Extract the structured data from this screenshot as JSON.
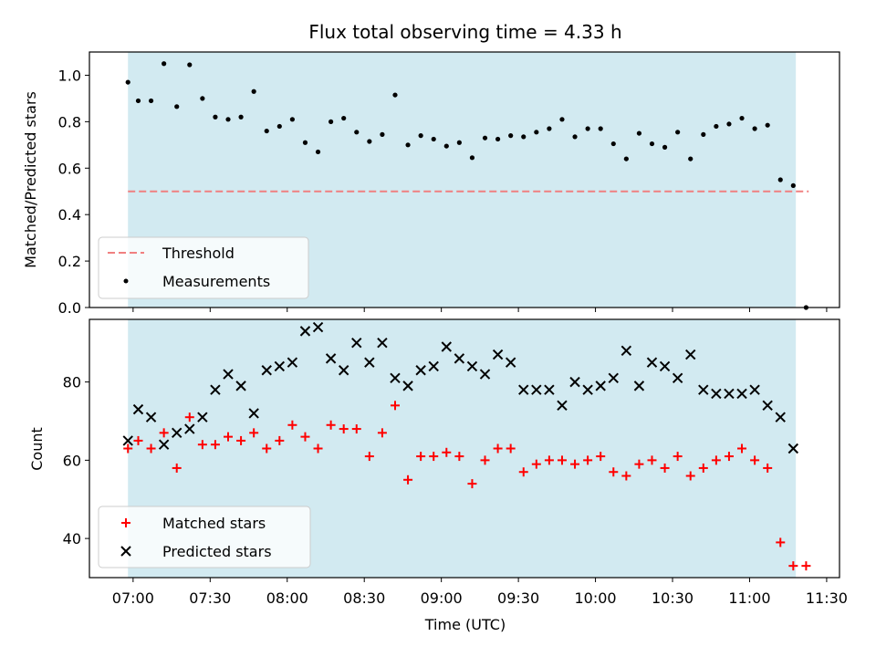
{
  "chart_data": [
    {
      "type": "scatter",
      "title": "Flux total observing time = 4.33 h",
      "ylabel": "Matched/Predicted stars",
      "ylim": [
        0,
        1.1
      ],
      "yticks": [
        "0.0",
        "0.2",
        "0.4",
        "0.6",
        "0.8",
        "1.0"
      ],
      "ytick_values": [
        0,
        0.2,
        0.4,
        0.6,
        0.8,
        1.0
      ],
      "threshold": {
        "name": "Threshold",
        "value": 0.5,
        "color": "#f08080",
        "x_start": "06:58",
        "x_end": "11:23"
      },
      "series": [
        {
          "name": "Measurements",
          "color": "#000000",
          "marker": "dot",
          "x": [
            "06:58",
            "07:02",
            "07:07",
            "07:12",
            "07:17",
            "07:22",
            "07:27",
            "07:32",
            "07:37",
            "07:42",
            "07:47",
            "07:52",
            "07:57",
            "08:02",
            "08:07",
            "08:12",
            "08:17",
            "08:22",
            "08:27",
            "08:32",
            "08:37",
            "08:42",
            "08:47",
            "08:52",
            "08:57",
            "09:02",
            "09:07",
            "09:12",
            "09:17",
            "09:22",
            "09:27",
            "09:32",
            "09:37",
            "09:42",
            "09:47",
            "09:52",
            "09:57",
            "10:02",
            "10:07",
            "10:12",
            "10:17",
            "10:22",
            "10:27",
            "10:32",
            "10:37",
            "10:42",
            "10:47",
            "10:52",
            "10:57",
            "11:02",
            "11:07",
            "11:12",
            "11:17",
            "11:22"
          ],
          "values": [
            0.97,
            0.89,
            0.89,
            1.05,
            0.865,
            1.045,
            0.9,
            0.82,
            0.81,
            0.82,
            0.93,
            0.76,
            0.78,
            0.81,
            0.71,
            0.67,
            0.8,
            0.815,
            0.755,
            0.715,
            0.745,
            0.915,
            0.7,
            0.74,
            0.725,
            0.695,
            0.71,
            0.645,
            0.73,
            0.725,
            0.74,
            0.735,
            0.755,
            0.77,
            0.81,
            0.735,
            0.77,
            0.77,
            0.705,
            0.64,
            0.75,
            0.705,
            0.69,
            0.755,
            0.64,
            0.745,
            0.78,
            0.79,
            0.815,
            0.77,
            0.785,
            0.55,
            0.525,
            0.0
          ]
        }
      ],
      "legend": "lower-left"
    },
    {
      "type": "scatter",
      "xlabel": "Time (UTC)",
      "ylabel": "Count",
      "ylim": [
        30,
        96
      ],
      "yticks": [
        "40",
        "60",
        "80"
      ],
      "ytick_values": [
        40,
        60,
        80
      ],
      "xlim": [
        "06:43",
        "11:35"
      ],
      "xticks": [
        "07:00",
        "07:30",
        "08:00",
        "08:30",
        "09:00",
        "09:30",
        "10:00",
        "10:30",
        "11:00",
        "11:30"
      ],
      "span": {
        "x_start": "06:58",
        "x_end": "11:18",
        "color": "#add8e6"
      },
      "series": [
        {
          "name": "Matched stars",
          "color": "#ff0000",
          "marker": "plus",
          "x": [
            "06:58",
            "07:02",
            "07:07",
            "07:12",
            "07:17",
            "07:22",
            "07:27",
            "07:32",
            "07:37",
            "07:42",
            "07:47",
            "07:52",
            "07:57",
            "08:02",
            "08:07",
            "08:12",
            "08:17",
            "08:22",
            "08:27",
            "08:32",
            "08:37",
            "08:42",
            "08:47",
            "08:52",
            "08:57",
            "09:02",
            "09:07",
            "09:12",
            "09:17",
            "09:22",
            "09:27",
            "09:32",
            "09:37",
            "09:42",
            "09:47",
            "09:52",
            "09:57",
            "10:02",
            "10:07",
            "10:12",
            "10:17",
            "10:22",
            "10:27",
            "10:32",
            "10:37",
            "10:42",
            "10:47",
            "10:52",
            "10:57",
            "11:02",
            "11:07",
            "11:12",
            "11:17",
            "11:22"
          ],
          "values": [
            63,
            65,
            63,
            67,
            58,
            71,
            64,
            64,
            66,
            65,
            67,
            63,
            65,
            69,
            66,
            63,
            69,
            68,
            68,
            61,
            67,
            74,
            55,
            61,
            61,
            62,
            61,
            54,
            60,
            63,
            63,
            57,
            59,
            60,
            60,
            59,
            60,
            61,
            57,
            56,
            59,
            60,
            58,
            61,
            56,
            58,
            60,
            61,
            63,
            60,
            58,
            39,
            33,
            33
          ]
        },
        {
          "name": "Predicted stars",
          "color": "#000000",
          "marker": "x",
          "x": [
            "06:58",
            "07:02",
            "07:07",
            "07:12",
            "07:17",
            "07:22",
            "07:27",
            "07:32",
            "07:37",
            "07:42",
            "07:47",
            "07:52",
            "07:57",
            "08:02",
            "08:07",
            "08:12",
            "08:17",
            "08:22",
            "08:27",
            "08:32",
            "08:37",
            "08:42",
            "08:47",
            "08:52",
            "08:57",
            "09:02",
            "09:07",
            "09:12",
            "09:17",
            "09:22",
            "09:27",
            "09:32",
            "09:37",
            "09:42",
            "09:47",
            "09:52",
            "09:57",
            "10:02",
            "10:07",
            "10:12",
            "10:17",
            "10:22",
            "10:27",
            "10:32",
            "10:37",
            "10:42",
            "10:47",
            "10:52",
            "10:57",
            "11:02",
            "11:07",
            "11:12",
            "11:17"
          ],
          "values": [
            65,
            73,
            71,
            64,
            67,
            68,
            71,
            78,
            82,
            79,
            72,
            83,
            84,
            85,
            93,
            94,
            86,
            83,
            90,
            85,
            90,
            81,
            79,
            83,
            84,
            89,
            86,
            84,
            82,
            87,
            85,
            78,
            78,
            78,
            74,
            80,
            78,
            79,
            81,
            88,
            79,
            85,
            84,
            81,
            87,
            78,
            77,
            77,
            77,
            78,
            74,
            71,
            63
          ]
        }
      ],
      "legend": "lower-left"
    }
  ]
}
